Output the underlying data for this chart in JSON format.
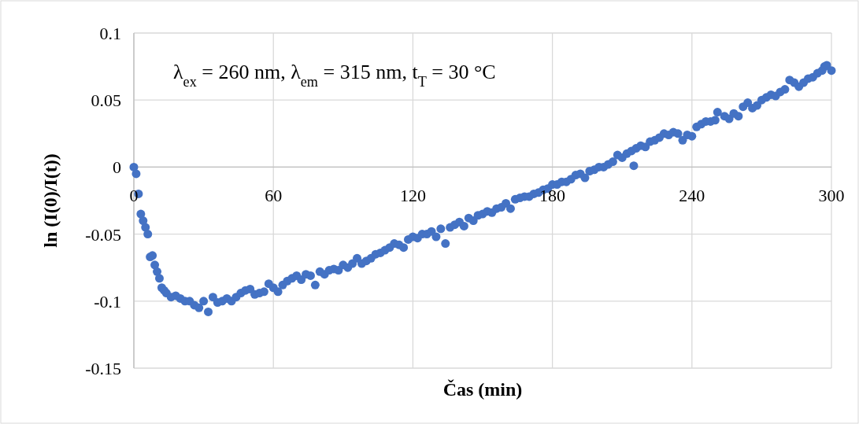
{
  "chart_data": {
    "type": "scatter",
    "xlabel": "Čas (min)",
    "ylabel": "ln (I(0)/I(t))",
    "annotations": [
      "λ$_{ex}$ = 260 nm, λ$_{em}$ = 315 nm, t$_{T}$ = 30 °C"
    ],
    "xlim": [
      0,
      300
    ],
    "xticks": [
      0,
      60,
      120,
      180,
      240,
      300
    ],
    "ylim": [
      -0.15,
      0.1
    ],
    "yticks": [
      -0.15,
      -0.1,
      -0.05,
      0,
      0.05,
      0.1
    ],
    "grid": true,
    "marker": "circle",
    "series": [
      {
        "color": "#4472c4",
        "x": [
          0,
          1,
          2,
          3,
          4,
          5,
          6,
          7,
          8,
          9,
          10,
          11,
          12,
          13,
          14,
          16,
          18,
          20,
          22,
          24,
          26,
          28,
          30,
          32,
          34,
          36,
          38,
          40,
          42,
          44,
          46,
          48,
          50,
          52,
          54,
          56,
          58,
          60,
          62,
          64,
          66,
          68,
          70,
          72,
          74,
          76,
          78,
          80,
          82,
          84,
          86,
          88,
          90,
          92,
          94,
          96,
          98,
          100,
          102,
          104,
          106,
          108,
          110,
          112,
          114,
          116,
          118,
          120,
          122,
          124,
          126,
          128,
          130,
          132,
          134,
          136,
          138,
          140,
          142,
          144,
          146,
          148,
          150,
          152,
          154,
          156,
          158,
          160,
          162,
          164,
          166,
          168,
          170,
          172,
          174,
          176,
          178,
          180,
          182,
          184,
          186,
          188,
          190,
          192,
          194,
          196,
          198,
          200,
          202,
          204,
          206,
          208,
          210,
          212,
          214,
          215,
          216,
          218,
          220,
          222,
          224,
          226,
          228,
          230,
          232,
          234,
          236,
          238,
          240,
          242,
          244,
          246,
          248,
          250,
          251,
          254,
          256,
          258,
          260,
          262,
          264,
          266,
          268,
          270,
          272,
          274,
          276,
          278,
          280,
          282,
          284,
          286,
          288,
          290,
          292,
          294,
          296,
          297,
          298,
          300
        ],
        "values": [
          0,
          -0.005,
          -0.02,
          -0.035,
          -0.04,
          -0.045,
          -0.05,
          -0.067,
          -0.066,
          -0.073,
          -0.078,
          -0.083,
          -0.09,
          -0.092,
          -0.094,
          -0.097,
          -0.096,
          -0.098,
          -0.1,
          -0.1,
          -0.103,
          -0.105,
          -0.1,
          -0.108,
          -0.097,
          -0.101,
          -0.1,
          -0.098,
          -0.1,
          -0.097,
          -0.094,
          -0.092,
          -0.091,
          -0.095,
          -0.094,
          -0.093,
          -0.087,
          -0.09,
          -0.093,
          -0.088,
          -0.085,
          -0.083,
          -0.081,
          -0.084,
          -0.08,
          -0.081,
          -0.088,
          -0.078,
          -0.08,
          -0.077,
          -0.076,
          -0.077,
          -0.073,
          -0.075,
          -0.072,
          -0.068,
          -0.072,
          -0.07,
          -0.068,
          -0.065,
          -0.064,
          -0.062,
          -0.06,
          -0.057,
          -0.058,
          -0.06,
          -0.054,
          -0.052,
          -0.053,
          -0.05,
          -0.05,
          -0.048,
          -0.052,
          -0.046,
          -0.057,
          -0.045,
          -0.043,
          -0.041,
          -0.044,
          -0.038,
          -0.04,
          -0.036,
          -0.035,
          -0.033,
          -0.034,
          -0.031,
          -0.03,
          -0.027,
          -0.031,
          -0.024,
          -0.023,
          -0.022,
          -0.022,
          -0.02,
          -0.019,
          -0.017,
          -0.016,
          -0.013,
          -0.013,
          -0.011,
          -0.011,
          -0.009,
          -0.006,
          -0.005,
          -0.008,
          -0.003,
          -0.002,
          0,
          0,
          0.002,
          0.004,
          0.009,
          0.007,
          0.01,
          0.012,
          0.001,
          0.014,
          0.016,
          0.015,
          0.019,
          0.02,
          0.022,
          0.025,
          0.024,
          0.026,
          0.025,
          0.02,
          0.024,
          0.023,
          0.03,
          0.032,
          0.034,
          0.034,
          0.035,
          0.041,
          0.038,
          0.036,
          0.04,
          0.038,
          0.045,
          0.048,
          0.044,
          0.046,
          0.05,
          0.052,
          0.054,
          0.053,
          0.056,
          0.058,
          0.065,
          0.063,
          0.06,
          0.063,
          0.066,
          0.067,
          0.07,
          0.072,
          0.075,
          0.076,
          0.072
        ]
      }
    ]
  }
}
